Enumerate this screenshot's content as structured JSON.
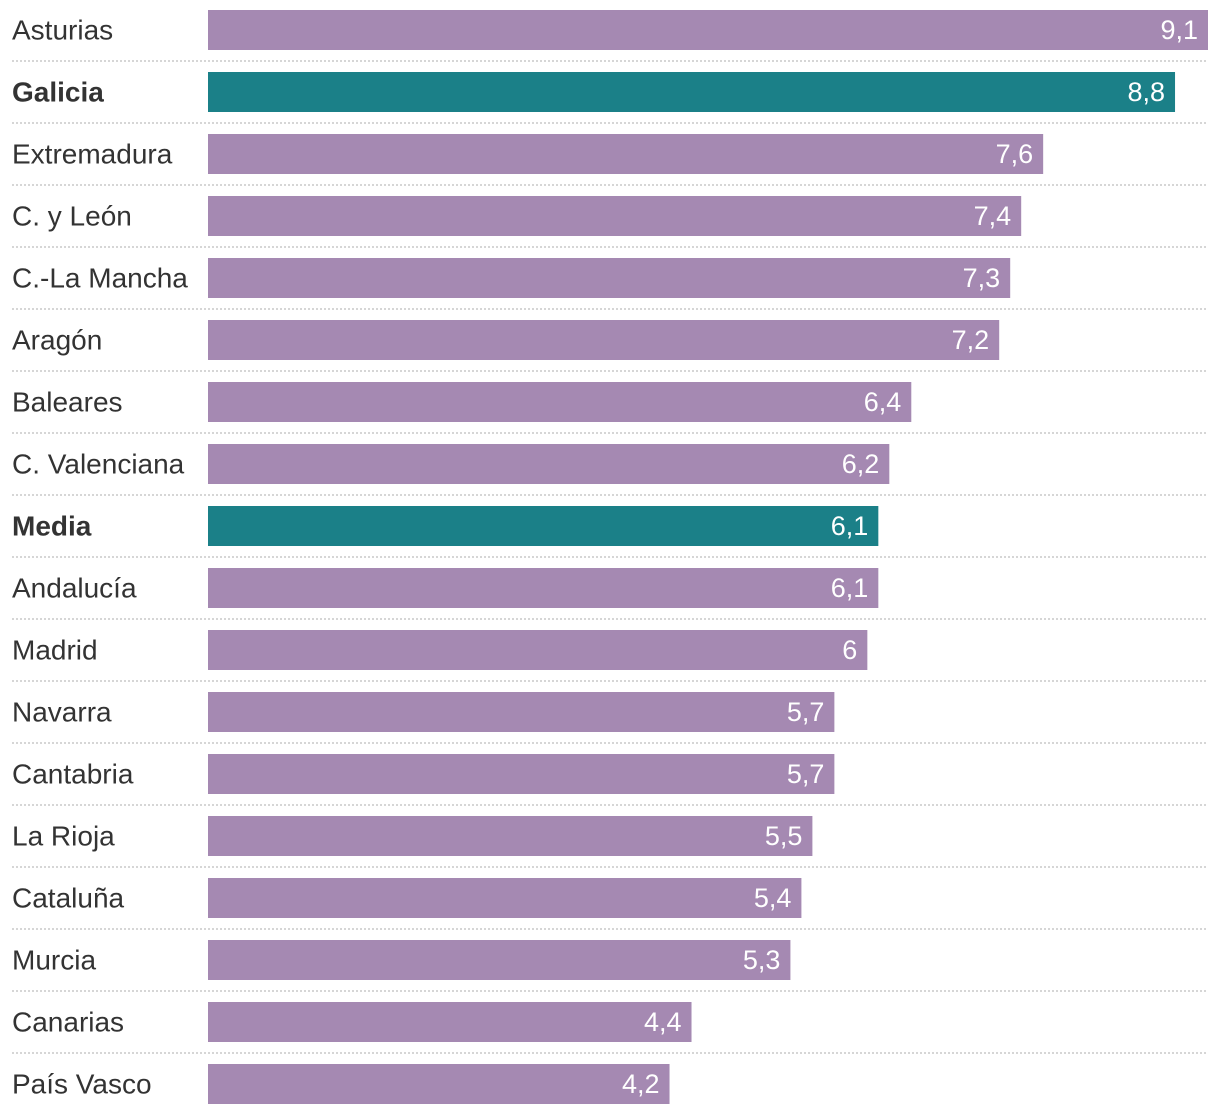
{
  "chart_data": {
    "type": "bar",
    "orientation": "horizontal",
    "categories": [
      "Asturias",
      "Galicia",
      "Extremadura",
      "C. y León",
      "C.-La Mancha",
      "Aragón",
      "Baleares",
      "C. Valenciana",
      "Media",
      "Andalucía",
      "Madrid",
      "Navarra",
      "Cantabria",
      "La Rioja",
      "Cataluña",
      "Murcia",
      "Canarias",
      "País Vasco"
    ],
    "values": [
      9.1,
      8.8,
      7.6,
      7.4,
      7.3,
      7.2,
      6.4,
      6.2,
      6.1,
      6.1,
      6,
      5.7,
      5.7,
      5.5,
      5.4,
      5.3,
      4.4,
      4.2
    ],
    "value_labels": [
      "9,1",
      "8,8",
      "7,6",
      "7,4",
      "7,3",
      "7,2",
      "6,4",
      "6,2",
      "6,1",
      "6,1",
      "6",
      "5,7",
      "5,7",
      "5,5",
      "5,4",
      "5,3",
      "4,4",
      "4,2"
    ],
    "highlighted": [
      "Galicia",
      "Media"
    ],
    "xlim": [
      0,
      9.1
    ],
    "grid": false,
    "colors": {
      "default_bar": "#a589b2",
      "highlight_bar": "#1b8088",
      "label_text": "#333333",
      "value_text": "#ffffff",
      "separator": "#c8c8c8"
    }
  }
}
